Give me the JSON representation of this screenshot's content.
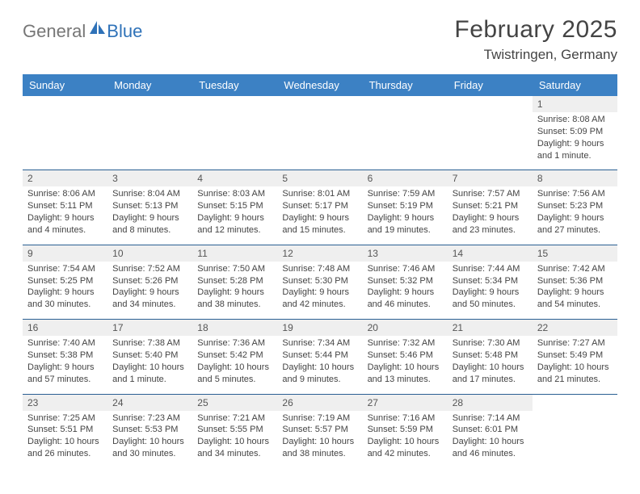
{
  "brand": {
    "word1": "General",
    "word2": "Blue"
  },
  "header": {
    "title": "February 2025",
    "location": "Twistringen, Germany"
  },
  "colors": {
    "header_bg": "#3c81c4",
    "header_text": "#ffffff",
    "date_row_bg": "#efefef",
    "row_divider": "#2a5f93",
    "brand_gray": "#767676",
    "brand_blue": "#2f72b8"
  },
  "fonts": {
    "title_size": 30,
    "location_size": 17,
    "dayheader_size": 13,
    "date_size": 12,
    "cell_size": 11
  },
  "dayNames": [
    "Sunday",
    "Monday",
    "Tuesday",
    "Wednesday",
    "Thursday",
    "Friday",
    "Saturday"
  ],
  "weeks": [
    [
      null,
      null,
      null,
      null,
      null,
      null,
      {
        "date": "1",
        "sunrise": "8:08 AM",
        "sunset": "5:09 PM",
        "daylight": "9 hours and 1 minute."
      }
    ],
    [
      {
        "date": "2",
        "sunrise": "8:06 AM",
        "sunset": "5:11 PM",
        "daylight": "9 hours and 4 minutes."
      },
      {
        "date": "3",
        "sunrise": "8:04 AM",
        "sunset": "5:13 PM",
        "daylight": "9 hours and 8 minutes."
      },
      {
        "date": "4",
        "sunrise": "8:03 AM",
        "sunset": "5:15 PM",
        "daylight": "9 hours and 12 minutes."
      },
      {
        "date": "5",
        "sunrise": "8:01 AM",
        "sunset": "5:17 PM",
        "daylight": "9 hours and 15 minutes."
      },
      {
        "date": "6",
        "sunrise": "7:59 AM",
        "sunset": "5:19 PM",
        "daylight": "9 hours and 19 minutes."
      },
      {
        "date": "7",
        "sunrise": "7:57 AM",
        "sunset": "5:21 PM",
        "daylight": "9 hours and 23 minutes."
      },
      {
        "date": "8",
        "sunrise": "7:56 AM",
        "sunset": "5:23 PM",
        "daylight": "9 hours and 27 minutes."
      }
    ],
    [
      {
        "date": "9",
        "sunrise": "7:54 AM",
        "sunset": "5:25 PM",
        "daylight": "9 hours and 30 minutes."
      },
      {
        "date": "10",
        "sunrise": "7:52 AM",
        "sunset": "5:26 PM",
        "daylight": "9 hours and 34 minutes."
      },
      {
        "date": "11",
        "sunrise": "7:50 AM",
        "sunset": "5:28 PM",
        "daylight": "9 hours and 38 minutes."
      },
      {
        "date": "12",
        "sunrise": "7:48 AM",
        "sunset": "5:30 PM",
        "daylight": "9 hours and 42 minutes."
      },
      {
        "date": "13",
        "sunrise": "7:46 AM",
        "sunset": "5:32 PM",
        "daylight": "9 hours and 46 minutes."
      },
      {
        "date": "14",
        "sunrise": "7:44 AM",
        "sunset": "5:34 PM",
        "daylight": "9 hours and 50 minutes."
      },
      {
        "date": "15",
        "sunrise": "7:42 AM",
        "sunset": "5:36 PM",
        "daylight": "9 hours and 54 minutes."
      }
    ],
    [
      {
        "date": "16",
        "sunrise": "7:40 AM",
        "sunset": "5:38 PM",
        "daylight": "9 hours and 57 minutes."
      },
      {
        "date": "17",
        "sunrise": "7:38 AM",
        "sunset": "5:40 PM",
        "daylight": "10 hours and 1 minute."
      },
      {
        "date": "18",
        "sunrise": "7:36 AM",
        "sunset": "5:42 PM",
        "daylight": "10 hours and 5 minutes."
      },
      {
        "date": "19",
        "sunrise": "7:34 AM",
        "sunset": "5:44 PM",
        "daylight": "10 hours and 9 minutes."
      },
      {
        "date": "20",
        "sunrise": "7:32 AM",
        "sunset": "5:46 PM",
        "daylight": "10 hours and 13 minutes."
      },
      {
        "date": "21",
        "sunrise": "7:30 AM",
        "sunset": "5:48 PM",
        "daylight": "10 hours and 17 minutes."
      },
      {
        "date": "22",
        "sunrise": "7:27 AM",
        "sunset": "5:49 PM",
        "daylight": "10 hours and 21 minutes."
      }
    ],
    [
      {
        "date": "23",
        "sunrise": "7:25 AM",
        "sunset": "5:51 PM",
        "daylight": "10 hours and 26 minutes."
      },
      {
        "date": "24",
        "sunrise": "7:23 AM",
        "sunset": "5:53 PM",
        "daylight": "10 hours and 30 minutes."
      },
      {
        "date": "25",
        "sunrise": "7:21 AM",
        "sunset": "5:55 PM",
        "daylight": "10 hours and 34 minutes."
      },
      {
        "date": "26",
        "sunrise": "7:19 AM",
        "sunset": "5:57 PM",
        "daylight": "10 hours and 38 minutes."
      },
      {
        "date": "27",
        "sunrise": "7:16 AM",
        "sunset": "5:59 PM",
        "daylight": "10 hours and 42 minutes."
      },
      {
        "date": "28",
        "sunrise": "7:14 AM",
        "sunset": "6:01 PM",
        "daylight": "10 hours and 46 minutes."
      },
      null
    ]
  ],
  "labels": {
    "sunrise": "Sunrise:",
    "sunset": "Sunset:",
    "daylight": "Daylight:"
  }
}
